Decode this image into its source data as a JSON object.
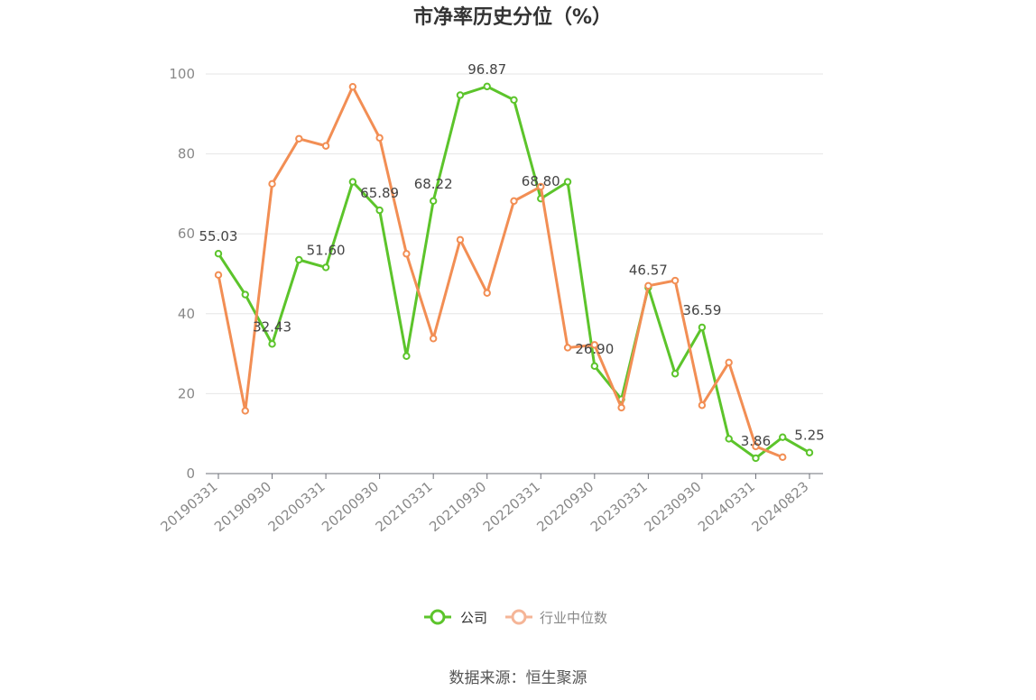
{
  "chart_data": {
    "type": "line",
    "title": "市净率历史分位（%）",
    "ylim": [
      0,
      100
    ],
    "yticks": [
      0,
      20,
      40,
      60,
      80,
      100
    ],
    "x_tick_labels": [
      "20190331",
      "20190930",
      "20200331",
      "20200930",
      "20210331",
      "20210930",
      "20220331",
      "20220930",
      "20230331",
      "20230930",
      "20240331",
      "20240823"
    ],
    "x_tick_positions": [
      0,
      2,
      4,
      6,
      8,
      10,
      12,
      14,
      16,
      18,
      20,
      22
    ],
    "x_count": 23,
    "grid": "horizontal",
    "legend_position": "bottom",
    "series": [
      {
        "name": "公司",
        "color": "#5cc42b",
        "values": [
          55.03,
          44.8,
          32.43,
          53.5,
          51.6,
          73.0,
          65.89,
          29.4,
          68.22,
          94.7,
          96.87,
          93.5,
          68.8,
          73.0,
          26.9,
          18.6,
          46.57,
          25.0,
          36.59,
          8.7,
          3.86,
          9.1,
          5.25
        ],
        "labels": [
          "55.03",
          "",
          "32.43",
          "",
          "51.60",
          "",
          "65.89",
          "",
          "68.22",
          "",
          "96.87",
          "",
          "68.80",
          "",
          "26.90",
          "",
          "46.57",
          "",
          "36.59",
          "",
          "3.86",
          "",
          "5.25"
        ]
      },
      {
        "name": "行业中位数",
        "color": "#f28e54",
        "values": [
          49.7,
          15.7,
          72.5,
          83.8,
          82.0,
          96.8,
          84.0,
          55.0,
          33.8,
          58.5,
          45.2,
          68.2,
          71.8,
          31.5,
          32.2,
          16.5,
          47.0,
          48.3,
          17.1,
          27.8,
          6.8,
          4.1,
          null
        ]
      }
    ]
  },
  "legend": {
    "company": "公司",
    "industry": "行业中位数"
  },
  "source_text": "数据来源：恒生聚源"
}
